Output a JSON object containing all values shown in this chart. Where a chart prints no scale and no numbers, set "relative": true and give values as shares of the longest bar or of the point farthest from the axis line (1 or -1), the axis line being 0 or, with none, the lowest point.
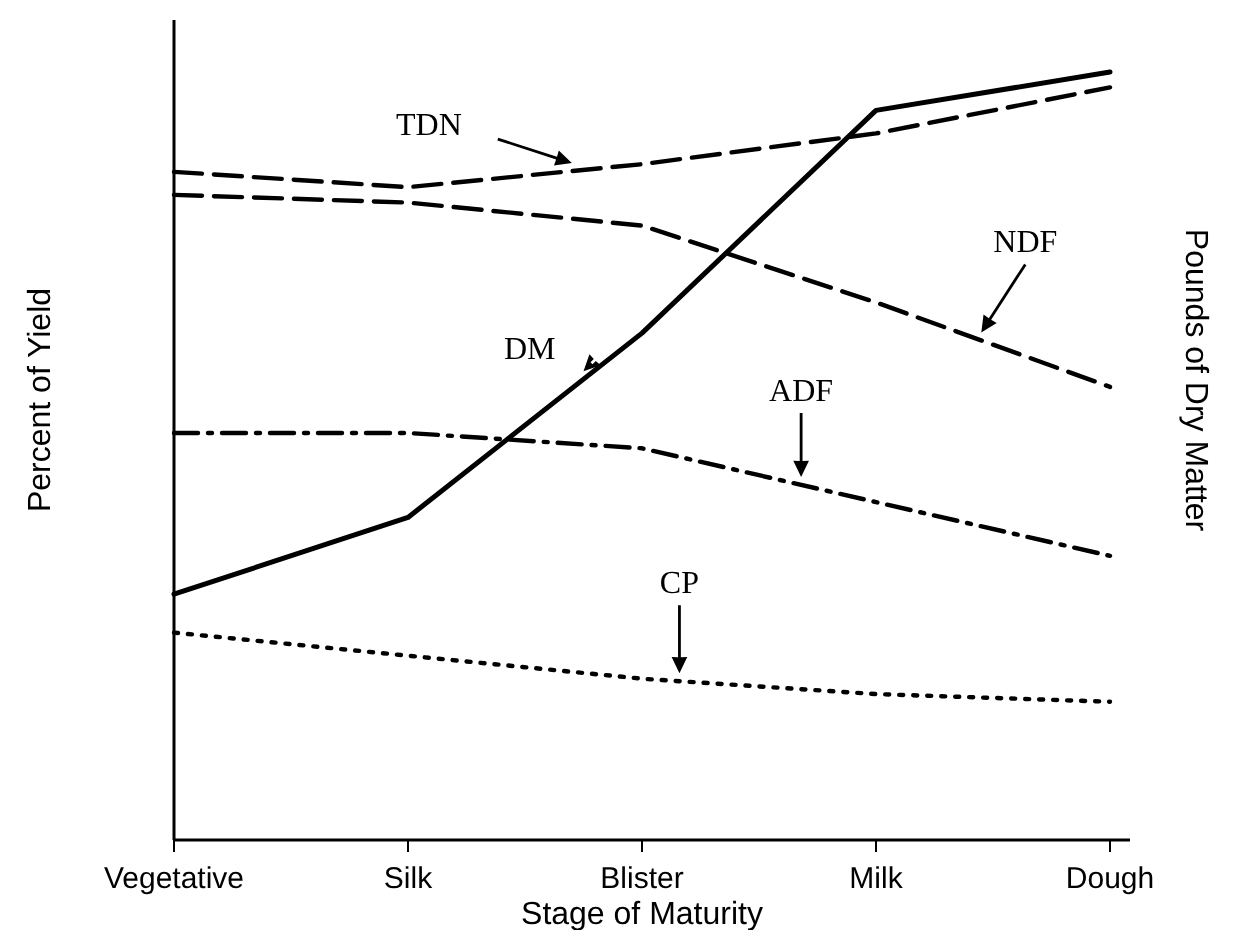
{
  "chart_data": {
    "type": "line",
    "relative": true,
    "xlabel": "Stage of Maturity",
    "ylabel": "Percent of Yield",
    "y2label": "Pounds of Dry Matter",
    "categories": [
      "Vegetative",
      "Silk",
      "Blister",
      "Milk",
      "Dough"
    ],
    "marker": "none",
    "series": [
      {
        "name": "DM",
        "color": "#000000",
        "line_style": "solid",
        "values": [
          0.32,
          0.42,
          0.66,
          0.95,
          1
        ]
      },
      {
        "name": "TDN",
        "color": "#000000",
        "line_style": "dashed",
        "values": [
          0.87,
          0.85,
          0.88,
          0.92,
          0.98
        ]
      },
      {
        "name": "NDF",
        "color": "#000000",
        "line_style": "dashed",
        "values": [
          0.84,
          0.83,
          0.8,
          0.7,
          0.59
        ]
      },
      {
        "name": "ADF",
        "color": "#000000",
        "line_style": "dashdot",
        "values": [
          0.53,
          0.53,
          0.51,
          0.44,
          0.37
        ]
      },
      {
        "name": "CP",
        "color": "#000000",
        "line_style": "dotted",
        "values": [
          0.27,
          0.24,
          0.21,
          0.19,
          0.18
        ]
      }
    ]
  }
}
